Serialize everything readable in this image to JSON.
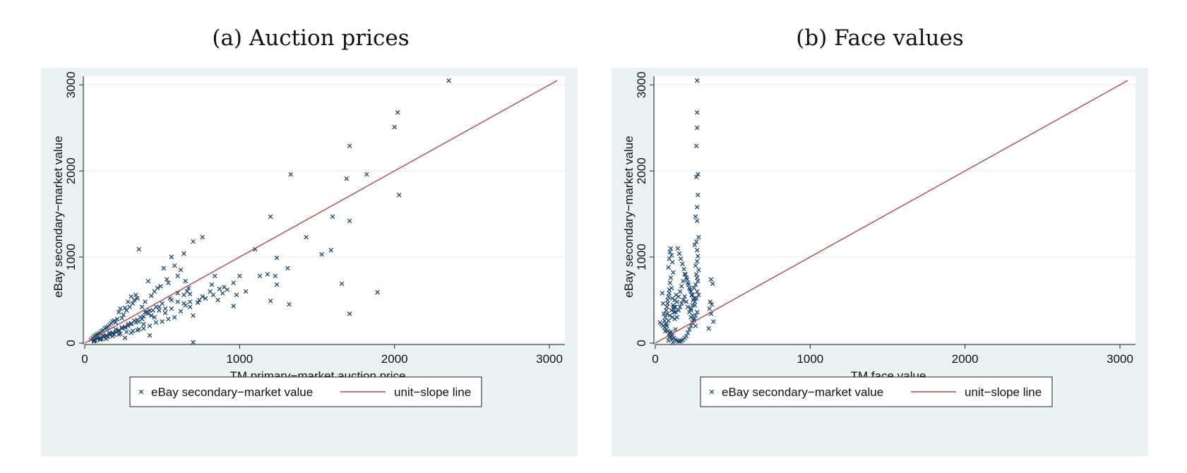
{
  "colors": {
    "background": "#eaf2f3",
    "plot_bg": "#ffffff",
    "gridline": "#e6ecee",
    "marker": "#1a476f",
    "line": "#b04a4a"
  },
  "chart_data": [
    {
      "panel_id": "a",
      "type": "scatter",
      "title": "(a) Auction prices",
      "xlabel": "TM primary−market auction price",
      "ylabel": "eBay secondary−market value",
      "xlim": [
        0,
        3100
      ],
      "ylim": [
        0,
        3100
      ],
      "xticks": [
        "0",
        "1000",
        "2000",
        "3000"
      ],
      "yticks": [
        "0",
        "1000",
        "2000",
        "3000"
      ],
      "grid": true,
      "legend_position": "bottom",
      "legend": [
        "eBay secondary−market value",
        "unit−slope line"
      ],
      "series": [
        {
          "name": "eBay secondary−market value",
          "kind": "scatter",
          "marker": "x",
          "x": [
            2350,
            2020,
            2000,
            1710,
            1330,
            1820,
            1690,
            2030,
            1200,
            1430,
            1600,
            1710,
            1590,
            1530,
            1240,
            1660,
            1310,
            1890,
            1710,
            1230,
            1130,
            1200,
            1320,
            1240,
            1180,
            1100,
            1000,
            960,
            890,
            870,
            840,
            810,
            760,
            730,
            700,
            680,
            670,
            640,
            620,
            600,
            580,
            560,
            540,
            530,
            510,
            490,
            470,
            450,
            430,
            410,
            390,
            370,
            350,
            340,
            330,
            320,
            310,
            300,
            290,
            280,
            270,
            260,
            250,
            240,
            230,
            220,
            210,
            200,
            190,
            180,
            170,
            160,
            150,
            140,
            130,
            120,
            110,
            100,
            90,
            80,
            70,
            60,
            50,
            40,
            680,
            640,
            600,
            560,
            520,
            480,
            440,
            400,
            360,
            320,
            280,
            240,
            200,
            160,
            120,
            80,
            700,
            650,
            620,
            580,
            540,
            500,
            460,
            420,
            380,
            350,
            310,
            270,
            230,
            190,
            150,
            110,
            70,
            860,
            920,
            980,
            1040,
            960,
            900,
            830,
            780,
            740,
            680,
            640,
            560,
            520,
            480,
            450,
            430,
            410,
            390,
            370,
            350,
            330,
            300,
            280,
            260,
            240,
            220,
            200,
            180,
            160,
            140,
            120,
            100,
            80,
            60,
            700,
            760,
            820,
            660,
            650,
            600,
            550,
            500,
            460,
            420,
            380,
            340,
            300,
            260,
            220,
            180,
            140,
            100,
            60,
            420,
            380,
            340,
            300,
            260,
            220,
            180,
            140,
            100,
            60
          ],
          "y": [
            3050,
            2680,
            2510,
            2290,
            1960,
            1960,
            1910,
            1720,
            1470,
            1230,
            1470,
            1420,
            1080,
            1030,
            990,
            690,
            870,
            590,
            340,
            780,
            780,
            490,
            450,
            680,
            800,
            1090,
            780,
            430,
            580,
            630,
            780,
            600,
            1230,
            470,
            1180,
            570,
            640,
            1040,
            850,
            780,
            900,
            1000,
            700,
            740,
            870,
            660,
            640,
            600,
            550,
            720,
            480,
            420,
            1090,
            520,
            560,
            500,
            460,
            540,
            420,
            480,
            380,
            410,
            330,
            290,
            400,
            360,
            280,
            240,
            260,
            250,
            230,
            210,
            190,
            180,
            170,
            150,
            140,
            120,
            110,
            100,
            90,
            80,
            60,
            40,
            420,
            560,
            480,
            500,
            400,
            420,
            380,
            360,
            300,
            260,
            220,
            180,
            160,
            120,
            90,
            60,
            320,
            440,
            370,
            300,
            280,
            250,
            240,
            200,
            170,
            160,
            140,
            130,
            110,
            100,
            70,
            50,
            30,
            500,
            620,
            560,
            600,
            700,
            650,
            560,
            520,
            500,
            480,
            460,
            400,
            350,
            380,
            300,
            320,
            340,
            360,
            280,
            250,
            240,
            230,
            200,
            190,
            170,
            150,
            130,
            120,
            100,
            90,
            70,
            60,
            50,
            40,
            10,
            540,
            680,
            600,
            720,
            580,
            520,
            460,
            420,
            380,
            310,
            270,
            220,
            180,
            140,
            110,
            80,
            50,
            20,
            90,
            220,
            150,
            120,
            60,
            100,
            80,
            50,
            40,
            30
          ]
        },
        {
          "name": "unit−slope line",
          "kind": "line",
          "x": [
            0,
            3050
          ],
          "y": [
            0,
            3050
          ]
        }
      ]
    },
    {
      "panel_id": "b",
      "type": "scatter",
      "title": "(b) Face values",
      "xlabel": "TM face value",
      "ylabel": "eBay secondary−market value",
      "xlim": [
        0,
        3100
      ],
      "ylim": [
        0,
        3100
      ],
      "xticks": [
        "0",
        "1000",
        "2000",
        "3000"
      ],
      "yticks": [
        "0",
        "1000",
        "2000",
        "3000"
      ],
      "grid": true,
      "legend_position": "bottom",
      "legend": [
        "eBay secondary−market value",
        "unit−slope line"
      ],
      "series": [
        {
          "name": "eBay secondary−market value",
          "kind": "scatter",
          "marker": "x",
          "x": [
            270,
            270,
            270,
            265,
            275,
            265,
            275,
            270,
            260,
            270,
            280,
            265,
            255,
            270,
            275,
            270,
            260,
            280,
            265,
            270,
            275,
            260,
            250,
            270,
            280,
            265,
            255,
            240,
            230,
            270,
            260,
            250,
            240,
            230,
            220,
            210,
            200,
            190,
            180,
            170,
            160,
            150,
            140,
            130,
            120,
            110,
            100,
            90,
            80,
            70,
            60,
            50,
            40,
            30,
            100,
            95,
            105,
            90,
            110,
            85,
            115,
            100,
            95,
            105,
            90,
            110,
            80,
            120,
            75,
            125,
            70,
            130,
            100,
            95,
            105,
            90,
            110,
            85,
            115,
            150,
            160,
            170,
            180,
            190,
            200,
            210,
            220,
            230,
            240,
            140,
            130,
            120,
            60,
            65,
            55,
            70,
            75,
            50,
            80,
            85,
            45,
            90,
            360,
            370,
            355,
            365,
            350,
            360,
            375,
            345,
            250,
            240,
            230,
            220,
            210,
            200,
            190,
            180,
            170,
            160,
            150,
            140,
            130,
            120,
            110,
            260,
            250,
            240,
            230,
            255,
            245,
            235,
            225,
            215,
            205,
            195,
            185,
            175,
            165,
            155,
            145,
            135,
            125,
            115,
            105,
            95,
            85,
            75,
            65
          ],
          "y": [
            3050,
            2680,
            2500,
            2290,
            1960,
            1930,
            1720,
            1580,
            1470,
            1420,
            1230,
            1180,
            1140,
            1080,
            1010,
            950,
            900,
            850,
            800,
            760,
            720,
            680,
            640,
            600,
            560,
            520,
            480,
            440,
            400,
            360,
            320,
            280,
            240,
            200,
            160,
            120,
            80,
            60,
            40,
            30,
            20,
            20,
            30,
            40,
            60,
            80,
            100,
            120,
            140,
            160,
            180,
            200,
            220,
            240,
            1100,
            1060,
            1020,
            980,
            940,
            880,
            820,
            760,
            700,
            640,
            580,
            520,
            460,
            400,
            340,
            280,
            220,
            160,
            130,
            110,
            90,
            70,
            50,
            30,
            10,
            380,
            420,
            460,
            500,
            540,
            480,
            420,
            360,
            300,
            240,
            300,
            360,
            420,
            260,
            300,
            340,
            380,
            420,
            460,
            500,
            540,
            580,
            620,
            740,
            690,
            480,
            450,
            400,
            340,
            250,
            170,
            520,
            560,
            600,
            640,
            700,
            760,
            800,
            720,
            660,
            600,
            540,
            480,
            420,
            360,
            300,
            200,
            260,
            320,
            380,
            440,
            500,
            560,
            620,
            680,
            740,
            800,
            860,
            920,
            980,
            1040,
            1100,
            560,
            500,
            440,
            380,
            320,
            260,
            200,
            140
          ]
        },
        {
          "name": "unit−slope line",
          "kind": "line",
          "x": [
            0,
            3050
          ],
          "y": [
            0,
            3050
          ]
        }
      ]
    }
  ]
}
